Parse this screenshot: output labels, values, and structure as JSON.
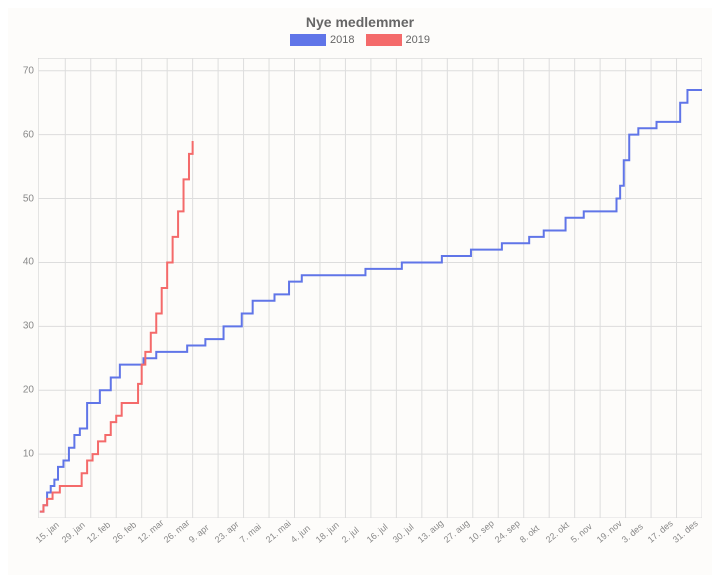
{
  "chart": {
    "type": "line",
    "title": "Nye medlemmer",
    "title_fontsize": 14,
    "title_color": "#666666",
    "background_color": "#fdfcfa",
    "plot_background": "#fdfcfa",
    "grid_color": "#dddddd",
    "border_color": "#cccccc",
    "tick_label_color": "#888888",
    "tick_label_fontsize": 10,
    "xtick_label_fontsize": 9,
    "xtick_rotation": -40,
    "ylim": [
      0,
      72
    ],
    "ytick_step": 10,
    "yticks": [
      0,
      10,
      20,
      30,
      40,
      50,
      60,
      70
    ],
    "x_range_days": 365,
    "xticks": [
      {
        "day": 15,
        "label": "15. jan"
      },
      {
        "day": 29,
        "label": "29. jan"
      },
      {
        "day": 43,
        "label": "12. feb"
      },
      {
        "day": 57,
        "label": "26. feb"
      },
      {
        "day": 71,
        "label": "12. mar"
      },
      {
        "day": 85,
        "label": "26. mar"
      },
      {
        "day": 99,
        "label": "9. apr"
      },
      {
        "day": 113,
        "label": "23. apr"
      },
      {
        "day": 127,
        "label": "7. mai"
      },
      {
        "day": 141,
        "label": "21. mai"
      },
      {
        "day": 155,
        "label": "4. jun"
      },
      {
        "day": 169,
        "label": "18. jun"
      },
      {
        "day": 183,
        "label": "2. jul"
      },
      {
        "day": 197,
        "label": "16. jul"
      },
      {
        "day": 211,
        "label": "30. jul"
      },
      {
        "day": 225,
        "label": "13. aug"
      },
      {
        "day": 239,
        "label": "27. aug"
      },
      {
        "day": 253,
        "label": "10. sep"
      },
      {
        "day": 267,
        "label": "24. sep"
      },
      {
        "day": 281,
        "label": "8. okt"
      },
      {
        "day": 295,
        "label": "22. okt"
      },
      {
        "day": 309,
        "label": "5. nov"
      },
      {
        "day": 323,
        "label": "19. nov"
      },
      {
        "day": 337,
        "label": "3. des"
      },
      {
        "day": 351,
        "label": "17. des"
      },
      {
        "day": 365,
        "label": "31. des"
      }
    ],
    "legend": {
      "position": "top-center",
      "fontsize": 11,
      "items": [
        {
          "label": "2018",
          "color": "#6075e8"
        },
        {
          "label": "2019",
          "color": "#f46a6a"
        }
      ]
    },
    "series": [
      {
        "name": "2018",
        "color": "#6075e8",
        "line_width": 2,
        "step": true,
        "points": [
          {
            "x": 1,
            "y": 1
          },
          {
            "x": 3,
            "y": 2
          },
          {
            "x": 5,
            "y": 4
          },
          {
            "x": 7,
            "y": 5
          },
          {
            "x": 9,
            "y": 6
          },
          {
            "x": 11,
            "y": 8
          },
          {
            "x": 14,
            "y": 9
          },
          {
            "x": 17,
            "y": 11
          },
          {
            "x": 20,
            "y": 13
          },
          {
            "x": 23,
            "y": 14
          },
          {
            "x": 27,
            "y": 18
          },
          {
            "x": 30,
            "y": 18
          },
          {
            "x": 34,
            "y": 20
          },
          {
            "x": 40,
            "y": 22
          },
          {
            "x": 45,
            "y": 24
          },
          {
            "x": 50,
            "y": 24
          },
          {
            "x": 58,
            "y": 25
          },
          {
            "x": 65,
            "y": 26
          },
          {
            "x": 75,
            "y": 26
          },
          {
            "x": 82,
            "y": 27
          },
          {
            "x": 88,
            "y": 27
          },
          {
            "x": 92,
            "y": 28
          },
          {
            "x": 98,
            "y": 28
          },
          {
            "x": 102,
            "y": 30
          },
          {
            "x": 108,
            "y": 30
          },
          {
            "x": 112,
            "y": 32
          },
          {
            "x": 118,
            "y": 34
          },
          {
            "x": 125,
            "y": 34
          },
          {
            "x": 130,
            "y": 35
          },
          {
            "x": 138,
            "y": 37
          },
          {
            "x": 145,
            "y": 38
          },
          {
            "x": 160,
            "y": 38
          },
          {
            "x": 175,
            "y": 38
          },
          {
            "x": 180,
            "y": 39
          },
          {
            "x": 195,
            "y": 39
          },
          {
            "x": 200,
            "y": 40
          },
          {
            "x": 215,
            "y": 40
          },
          {
            "x": 222,
            "y": 41
          },
          {
            "x": 232,
            "y": 41
          },
          {
            "x": 238,
            "y": 42
          },
          {
            "x": 250,
            "y": 42
          },
          {
            "x": 255,
            "y": 43
          },
          {
            "x": 265,
            "y": 43
          },
          {
            "x": 270,
            "y": 44
          },
          {
            "x": 278,
            "y": 45
          },
          {
            "x": 285,
            "y": 45
          },
          {
            "x": 290,
            "y": 47
          },
          {
            "x": 300,
            "y": 48
          },
          {
            "x": 315,
            "y": 48
          },
          {
            "x": 318,
            "y": 50
          },
          {
            "x": 320,
            "y": 52
          },
          {
            "x": 322,
            "y": 56
          },
          {
            "x": 325,
            "y": 60
          },
          {
            "x": 330,
            "y": 61
          },
          {
            "x": 340,
            "y": 62
          },
          {
            "x": 348,
            "y": 62
          },
          {
            "x": 353,
            "y": 65
          },
          {
            "x": 357,
            "y": 67
          },
          {
            "x": 365,
            "y": 67
          }
        ]
      },
      {
        "name": "2019",
        "color": "#f46a6a",
        "line_width": 2,
        "step": true,
        "points": [
          {
            "x": 1,
            "y": 1
          },
          {
            "x": 3,
            "y": 2
          },
          {
            "x": 5,
            "y": 3
          },
          {
            "x": 8,
            "y": 4
          },
          {
            "x": 12,
            "y": 5
          },
          {
            "x": 20,
            "y": 5
          },
          {
            "x": 24,
            "y": 7
          },
          {
            "x": 27,
            "y": 9
          },
          {
            "x": 30,
            "y": 10
          },
          {
            "x": 33,
            "y": 12
          },
          {
            "x": 37,
            "y": 13
          },
          {
            "x": 40,
            "y": 15
          },
          {
            "x": 43,
            "y": 16
          },
          {
            "x": 46,
            "y": 18
          },
          {
            "x": 52,
            "y": 18
          },
          {
            "x": 55,
            "y": 21
          },
          {
            "x": 57,
            "y": 24
          },
          {
            "x": 59,
            "y": 26
          },
          {
            "x": 62,
            "y": 29
          },
          {
            "x": 65,
            "y": 32
          },
          {
            "x": 68,
            "y": 36
          },
          {
            "x": 71,
            "y": 40
          },
          {
            "x": 74,
            "y": 44
          },
          {
            "x": 77,
            "y": 48
          },
          {
            "x": 80,
            "y": 53
          },
          {
            "x": 83,
            "y": 57
          },
          {
            "x": 85,
            "y": 59
          }
        ]
      }
    ]
  }
}
